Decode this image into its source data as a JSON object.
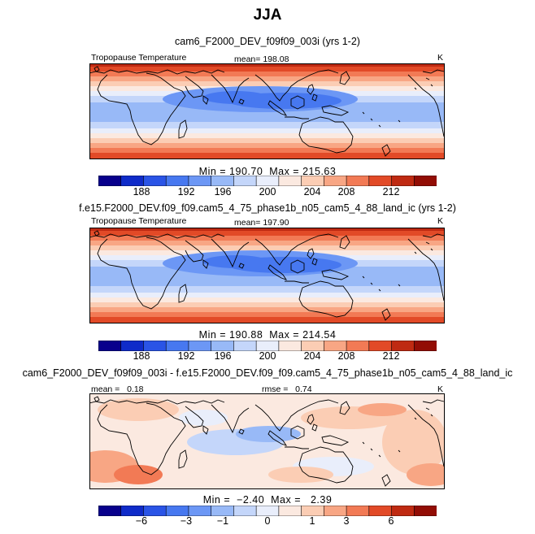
{
  "title": "JJA",
  "panels": [
    {
      "title": "cam6_F2000_DEV_f09f09_003i (yrs 1-2)",
      "left_label": "Tropopause Temperature",
      "center_label": "mean= 198.08",
      "units": "K",
      "stats": "Min = 190.70  Max = 215.63",
      "colorbar_labels": [
        "188",
        "192",
        "196",
        "200",
        "204",
        "208",
        "212"
      ]
    },
    {
      "title": "f.e15.F2000_DEV.f09_f09.cam5_4_75_phase1b_n05_cam5_4_88_land_ic (yrs 1-2)",
      "left_label": "Tropopause Temperature",
      "center_label": "mean= 197.90",
      "units": "K",
      "stats": "Min = 190.88  Max = 214.54",
      "colorbar_labels": [
        "188",
        "192",
        "196",
        "200",
        "204",
        "208",
        "212"
      ]
    },
    {
      "title": "cam6_F2000_DEV_f09f09_003i - f.e15.F2000_DEV.f09_f09.cam5_4_75_phase1b_n05_cam5_4_88_land_ic",
      "left_label": "mean =   0.18",
      "center_label": "rmse =   0.74",
      "units": "K",
      "stats": "Min =  −2.40  Max =   2.39",
      "colorbar_labels": [
        "−6",
        "−3",
        "−1",
        "0",
        "1",
        "3",
        "6"
      ]
    }
  ],
  "colors": {
    "scale": [
      "#08008c",
      "#0f2bc9",
      "#2a54e6",
      "#4778f0",
      "#6c97f5",
      "#98b9f7",
      "#c4d6fa",
      "#e9eefb",
      "#fbe9e0",
      "#fbcdb4",
      "#f8a684",
      "#f27a55",
      "#e24a27",
      "#bf2a12",
      "#920d05"
    ]
  }
}
